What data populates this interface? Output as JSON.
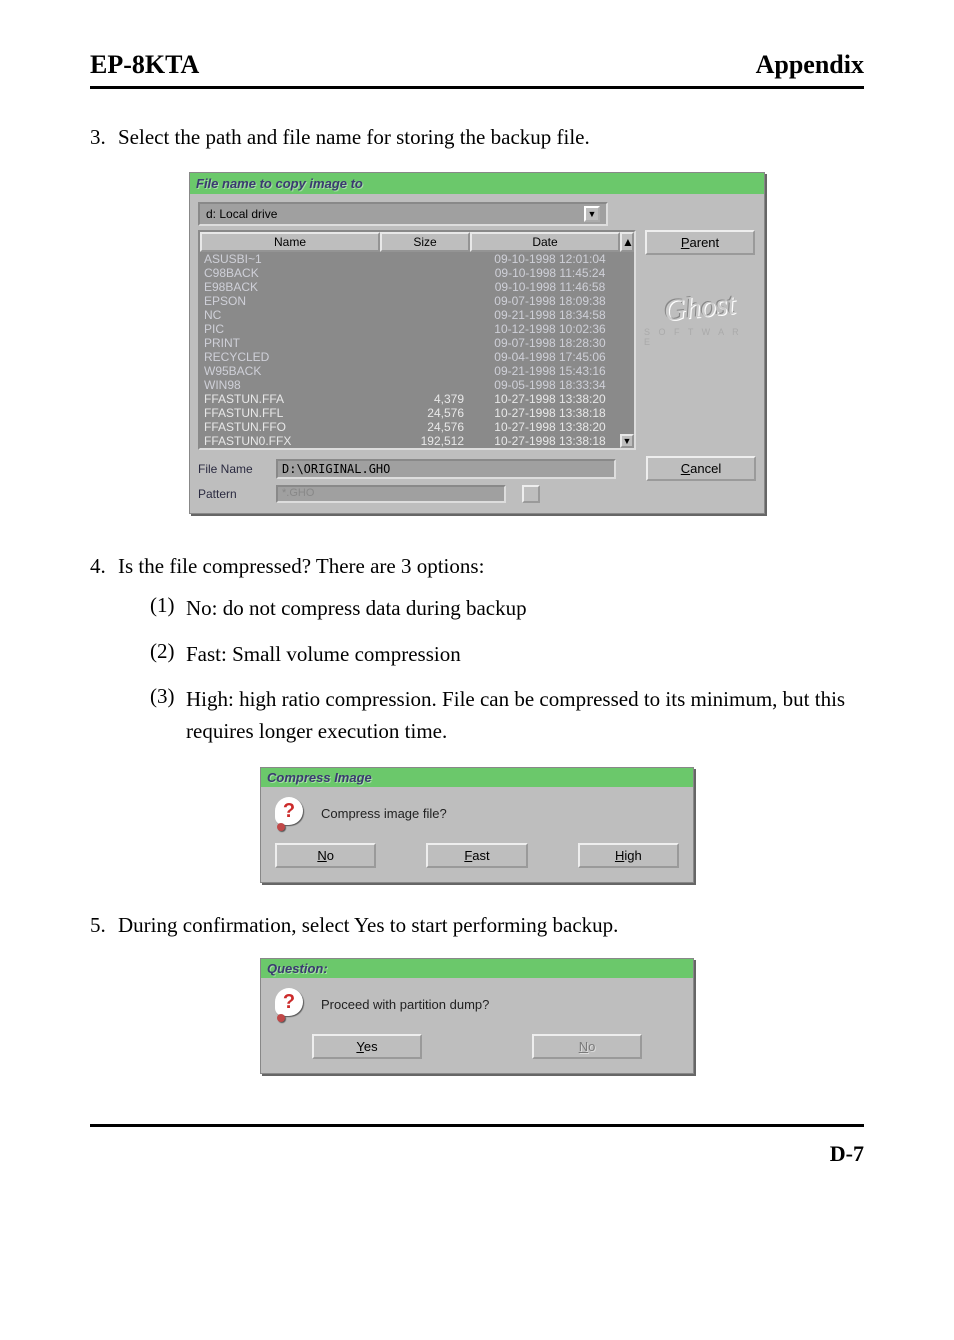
{
  "header": {
    "left": "EP-8KTA",
    "right": "Appendix"
  },
  "steps": {
    "s3": {
      "num": "3.",
      "text": "Select the path and file name for storing the backup file."
    },
    "s4": {
      "num": "4.",
      "text": "Is the file compressed? There are 3 options:"
    },
    "s4opts": {
      "o1": {
        "lbl": "(1)",
        "txt": "No: do not compress data during backup"
      },
      "o2": {
        "lbl": "(2)",
        "txt": "Fast: Small volume compression"
      },
      "o3": {
        "lbl": "(3)",
        "txt": "High: high ratio compression.  File can be compressed to its minimum, but this requires longer execution time."
      }
    },
    "s5": {
      "num": "5.",
      "text": "During confirmation, select Yes to start performing backup."
    }
  },
  "file_dialog": {
    "title": "File name to copy image to",
    "drive": "d: Local drive",
    "headers": {
      "name": "Name",
      "size": "Size",
      "date": "Date"
    },
    "rows": [
      {
        "name": "ASUSBI~1",
        "size": "",
        "date": "09-10-1998 12:01:04"
      },
      {
        "name": "C98BACK",
        "size": "",
        "date": "09-10-1998 11:45:24"
      },
      {
        "name": "E98BACK",
        "size": "",
        "date": "09-10-1998 11:46:58"
      },
      {
        "name": "EPSON",
        "size": "",
        "date": "09-07-1998 18:09:38"
      },
      {
        "name": "NC",
        "size": "",
        "date": "09-21-1998 18:34:58"
      },
      {
        "name": "PIC",
        "size": "",
        "date": "10-12-1998 10:02:36"
      },
      {
        "name": "PRINT",
        "size": "",
        "date": "09-07-1998 18:28:30"
      },
      {
        "name": "RECYCLED",
        "size": "",
        "date": "09-04-1998 17:45:06"
      },
      {
        "name": "W95BACK",
        "size": "",
        "date": "09-21-1998 15:43:16"
      },
      {
        "name": "WIN98",
        "size": "",
        "date": "09-05-1998 18:33:34"
      },
      {
        "name": "FFASTUN.FFA",
        "size": "4,379",
        "date": "10-27-1998 13:38:20"
      },
      {
        "name": "FFASTUN.FFL",
        "size": "24,576",
        "date": "10-27-1998 13:38:18"
      },
      {
        "name": "FFASTUN.FFO",
        "size": "24,576",
        "date": "10-27-1998 13:38:20"
      },
      {
        "name": "FFASTUN0.FFX",
        "size": "192,512",
        "date": "10-27-1998 13:38:18"
      }
    ],
    "buttons": {
      "parent": "Parent",
      "cancel": "Cancel"
    },
    "labels": {
      "file_name": "File Name",
      "pattern": "Pattern"
    },
    "file_name_value": "D:\\ORIGINAL.GHO",
    "pattern_value": "*.GHO",
    "logo": "Ghost",
    "logo_sub": "S O F T W A R E"
  },
  "compress_dialog": {
    "title": "Compress Image",
    "question": "Compress image file?",
    "buttons": {
      "no": "No",
      "fast": "Fast",
      "high": "High"
    }
  },
  "question_dialog": {
    "title": "Question:",
    "question": "Proceed with partition dump?",
    "buttons": {
      "yes": "Yes",
      "no": "No"
    }
  },
  "page_number": "D-7",
  "colors": {
    "panel_bg": "#bebebe",
    "title_green": "#6bc86b",
    "title_text": "#3a3a70",
    "sunken_bg": "#8a8a8a",
    "row_text": "#cfd0d8",
    "q_red": "#cc2b2b"
  }
}
